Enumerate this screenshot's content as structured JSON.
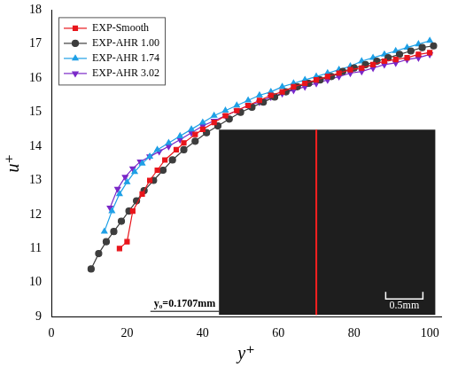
{
  "chart_data": {
    "type": "line",
    "x_label": "y⁺",
    "y_label": "u⁺",
    "xlim": [
      0,
      103
    ],
    "xticks": [
      0,
      20,
      40,
      60,
      80,
      100
    ],
    "ylim": [
      9,
      18
    ],
    "yticks": [
      9,
      10,
      11,
      12,
      13,
      14,
      15,
      16,
      17,
      18
    ],
    "grid": false,
    "legend": "upper left",
    "annotations": [
      "y₀=0.1707mm",
      "0.5mm"
    ],
    "series": [
      {
        "name": "EXP-Smooth",
        "color": "#e8151b",
        "marker": "square",
        "x": [
          18,
          20,
          21.5,
          24,
          26,
          28,
          30,
          33,
          35,
          38,
          40,
          43,
          46,
          49,
          52,
          55,
          58,
          61,
          64,
          67,
          70,
          73,
          76,
          79,
          82,
          85,
          88,
          91,
          94,
          97,
          100
        ],
        "values": [
          11.0,
          11.2,
          12.1,
          12.6,
          13.0,
          13.3,
          13.6,
          13.9,
          14.1,
          14.35,
          14.5,
          14.7,
          14.9,
          15.05,
          15.2,
          15.35,
          15.5,
          15.6,
          15.75,
          15.85,
          15.95,
          16.05,
          16.15,
          16.25,
          16.3,
          16.4,
          16.5,
          16.55,
          16.6,
          16.7,
          16.75
        ]
      },
      {
        "name": "EXP-AHR 1.00",
        "color": "#3d3d3d",
        "marker": "circle",
        "x": [
          10.5,
          12.5,
          14.5,
          16.5,
          18.5,
          20.5,
          22.5,
          24.5,
          27,
          29.5,
          32,
          35,
          38,
          41,
          44,
          47,
          50,
          53,
          56,
          59,
          62,
          65,
          68,
          71,
          74,
          77,
          80,
          83,
          86,
          89,
          92,
          95,
          98,
          101
        ],
        "values": [
          10.4,
          10.85,
          11.2,
          11.5,
          11.8,
          12.1,
          12.4,
          12.7,
          13.0,
          13.3,
          13.6,
          13.9,
          14.15,
          14.4,
          14.6,
          14.8,
          15.0,
          15.15,
          15.3,
          15.45,
          15.6,
          15.75,
          15.85,
          15.95,
          16.05,
          16.2,
          16.3,
          16.4,
          16.5,
          16.6,
          16.7,
          16.8,
          16.9,
          16.95
        ]
      },
      {
        "name": "EXP-AHR 1.74",
        "color": "#1fa0e6",
        "marker": "triangle",
        "x": [
          14,
          16,
          18,
          20,
          22,
          24,
          26,
          28,
          31,
          34,
          37,
          40,
          43,
          46,
          49,
          52,
          55,
          58,
          61,
          64,
          67,
          70,
          73,
          76,
          79,
          82,
          85,
          88,
          91,
          94,
          97,
          100
        ],
        "values": [
          11.5,
          12.1,
          12.6,
          12.95,
          13.25,
          13.5,
          13.7,
          13.9,
          14.1,
          14.3,
          14.5,
          14.7,
          14.9,
          15.05,
          15.2,
          15.35,
          15.5,
          15.6,
          15.75,
          15.85,
          15.95,
          16.05,
          16.15,
          16.25,
          16.35,
          16.5,
          16.6,
          16.7,
          16.8,
          16.9,
          17.0,
          17.1
        ]
      },
      {
        "name": "EXP-AHR 3.02",
        "color": "#7a28c8",
        "marker": "triangle-down",
        "x": [
          15.5,
          17.5,
          19.5,
          21.5,
          23.5,
          26,
          28.5,
          31,
          34,
          37,
          40,
          43,
          46,
          49,
          52,
          55,
          58,
          61,
          64,
          67,
          70,
          73,
          76,
          79,
          82,
          85,
          88,
          91,
          94,
          97,
          100
        ],
        "values": [
          12.2,
          12.75,
          13.1,
          13.35,
          13.55,
          13.7,
          13.85,
          14.0,
          14.2,
          14.4,
          14.6,
          14.75,
          14.9,
          15.05,
          15.2,
          15.3,
          15.45,
          15.55,
          15.65,
          15.75,
          15.85,
          15.95,
          16.05,
          16.15,
          16.2,
          16.3,
          16.4,
          16.45,
          16.55,
          16.6,
          16.7
        ]
      }
    ]
  }
}
